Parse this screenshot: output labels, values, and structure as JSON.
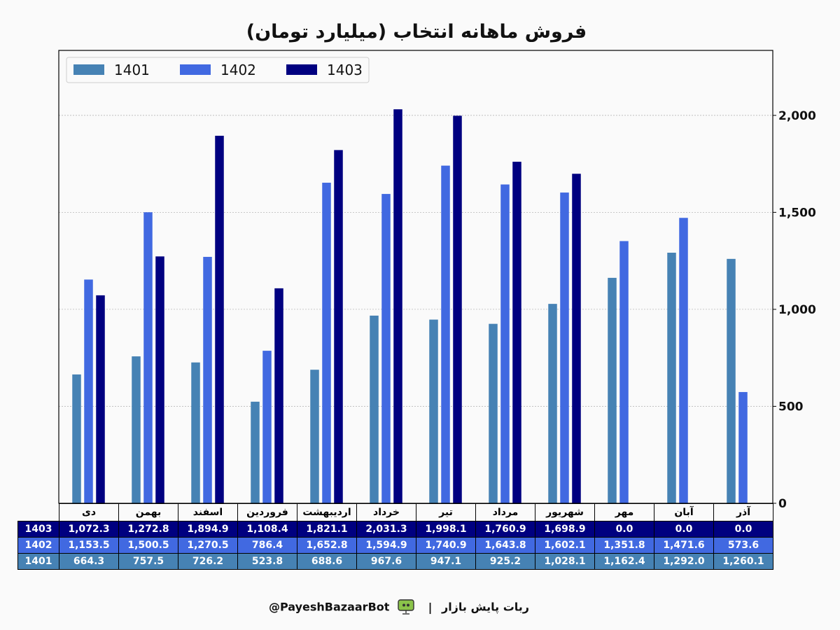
{
  "chart_data": {
    "type": "bar",
    "title": "فروش ماهانه انتخاب (میلیارد تومان)",
    "categories": [
      "دی",
      "بهمن",
      "اسفند",
      "فروردین",
      "اردیبهشت",
      "خرداد",
      "تیر",
      "مرداد",
      "شهریور",
      "مهر",
      "آبان",
      "آذر"
    ],
    "series": [
      {
        "name": "1401",
        "color": "#4682b4",
        "values": [
          664.3,
          757.5,
          726.2,
          523.8,
          688.6,
          967.6,
          947.1,
          925.2,
          1028.1,
          1162.4,
          1292.0,
          1260.1
        ]
      },
      {
        "name": "1402",
        "color": "#4169e1",
        "values": [
          1153.5,
          1500.5,
          1270.5,
          786.4,
          1652.8,
          1594.9,
          1740.9,
          1643.8,
          1602.1,
          1351.8,
          1471.6,
          573.6
        ]
      },
      {
        "name": "1403",
        "color": "#000080",
        "values": [
          1072.3,
          1272.8,
          1894.9,
          1108.4,
          1821.1,
          2031.3,
          1998.1,
          1760.9,
          1698.9,
          0.0,
          0.0,
          0.0
        ]
      }
    ],
    "table_rows": [
      {
        "label": "1403",
        "values": [
          "1,072.3",
          "1,272.8",
          "1,894.9",
          "1,108.4",
          "1,821.1",
          "2,031.3",
          "1,998.1",
          "1,760.9",
          "1,698.9",
          "0.0",
          "0.0",
          "0.0"
        ]
      },
      {
        "label": "1402",
        "values": [
          "1,153.5",
          "1,500.5",
          "1,270.5",
          "786.4",
          "1,652.8",
          "1,594.9",
          "1,740.9",
          "1,643.8",
          "1,602.1",
          "1,351.8",
          "1,471.6",
          "573.6"
        ]
      },
      {
        "label": "1401",
        "values": [
          "664.3",
          "757.5",
          "726.2",
          "523.8",
          "688.6",
          "967.6",
          "947.1",
          "925.2",
          "1,028.1",
          "1,162.4",
          "1,292.0",
          "1,260.1"
        ]
      }
    ],
    "y_ticks": [
      0,
      500,
      1000,
      1500,
      2000
    ],
    "y_tick_labels": [
      "0",
      "500",
      "1,000",
      "1,500",
      "2,000"
    ],
    "ylim": [
      0,
      2335
    ],
    "y_axis_side": "right",
    "grid": true,
    "legend_position": "top-left"
  },
  "footer": {
    "bot_name": "ربات پایش بازار",
    "separator": "|",
    "handle": "@PayeshBazaarBot"
  }
}
